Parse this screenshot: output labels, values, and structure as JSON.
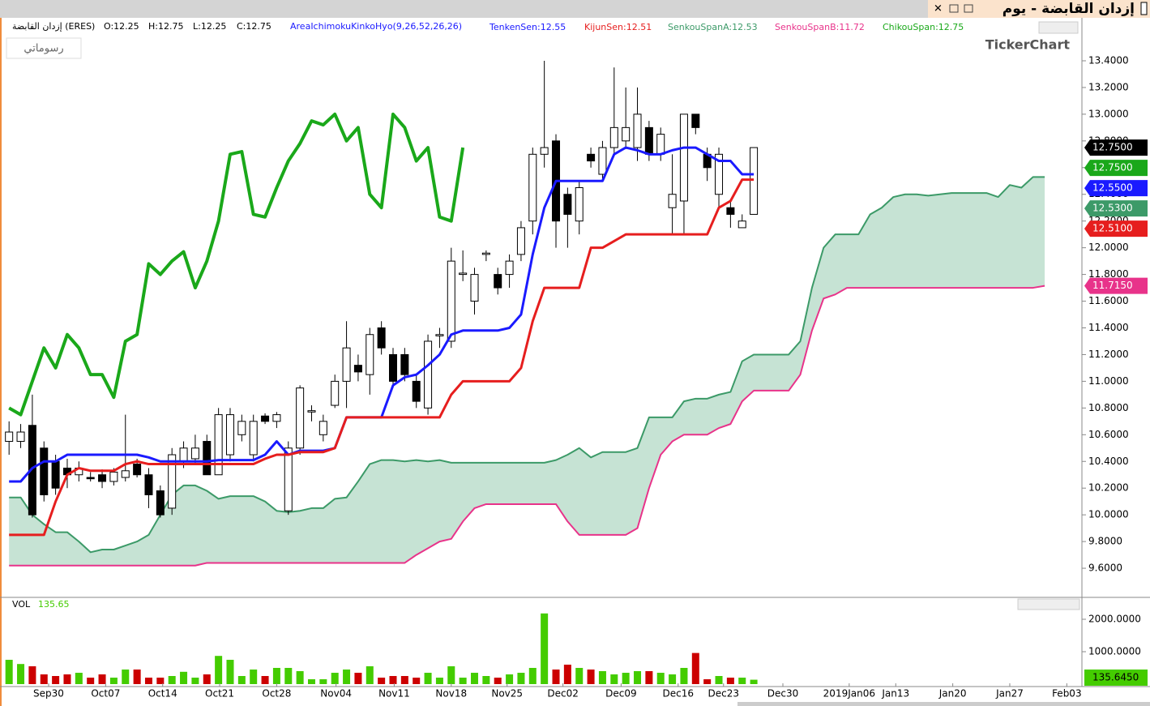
{
  "title": "إزدان القابضة - يوم",
  "drawings_button": "رسوماتي",
  "watermark": "TickerChart",
  "chart_data": [
    {
      "type": "candlestick",
      "info": [
        {
          "text": "إزدان القابضة (ERES)",
          "color": "#000000"
        },
        {
          "text": "O:12.25",
          "color": "#000000"
        },
        {
          "text": "H:12.75",
          "color": "#000000"
        },
        {
          "text": "L:12.25",
          "color": "#000000"
        },
        {
          "text": "C:12.75",
          "color": "#000000"
        },
        {
          "text": "AreaIchimokuKinkoHyo(9,26,52,26,26)",
          "color": "#1a1aff"
        }
      ],
      "xlim": [
        -0.5,
        92.2
      ],
      "ylim": [
        9.394,
        13.582
      ],
      "yticks": [
        {
          "value": 13.4,
          "label": "13.4000"
        },
        {
          "value": 13.2,
          "label": "13.2000"
        },
        {
          "value": 13.0,
          "label": "13.0000"
        },
        {
          "value": 12.8,
          "label": "12.8000"
        },
        {
          "value": 12.6,
          "label": "12.6000"
        },
        {
          "value": 12.4,
          "label": "12.4000"
        },
        {
          "value": 12.2,
          "label": "12.2000"
        },
        {
          "value": 12.0,
          "label": "12.0000"
        },
        {
          "value": 11.8,
          "label": "11.8000"
        },
        {
          "value": 11.6,
          "label": "11.6000"
        },
        {
          "value": 11.4,
          "label": "11.4000"
        },
        {
          "value": 11.2,
          "label": "11.2000"
        },
        {
          "value": 11.0,
          "label": "11.0000"
        },
        {
          "value": 10.8,
          "label": "10.8000"
        },
        {
          "value": 10.6,
          "label": "10.6000"
        },
        {
          "value": 10.4,
          "label": "10.4000"
        },
        {
          "value": 10.2,
          "label": "10.2000"
        },
        {
          "value": 10.0,
          "label": "10.0000"
        },
        {
          "value": 9.8,
          "label": "9.8000"
        },
        {
          "value": 9.6,
          "label": "9.6000"
        }
      ],
      "up_color": "#ffffff",
      "down_color": "#000000",
      "open": [
        10.55,
        10.55,
        10.67,
        10.5,
        10.4,
        10.35,
        10.3,
        10.28,
        10.3,
        10.25,
        10.28,
        10.38,
        10.3,
        10.18,
        10.05,
        10.4,
        10.42,
        10.55,
        10.3,
        10.45,
        10.6,
        10.45,
        10.74,
        10.7,
        10.03,
        10.5,
        10.77,
        10.6,
        10.82,
        11.0,
        11.12,
        11.05,
        11.4,
        11.2,
        11.2,
        11.0,
        10.8,
        11.34,
        11.3,
        11.8,
        11.6,
        11.95,
        11.8,
        11.8,
        11.95,
        12.2,
        12.7,
        12.8,
        12.4,
        12.2,
        12.7,
        12.55,
        12.75,
        12.8,
        12.75,
        12.9,
        12.7,
        12.3,
        12.35,
        13.0,
        12.7,
        12.4,
        12.3,
        12.15,
        12.25
      ],
      "high": [
        10.7,
        10.68,
        10.9,
        10.55,
        10.45,
        10.42,
        10.4,
        10.32,
        10.34,
        10.35,
        10.75,
        10.42,
        10.35,
        10.22,
        10.5,
        10.55,
        10.6,
        10.6,
        10.8,
        10.8,
        10.75,
        10.75,
        10.76,
        10.77,
        10.55,
        10.97,
        10.82,
        10.75,
        11.05,
        11.45,
        11.2,
        11.4,
        11.45,
        11.25,
        11.25,
        11.05,
        11.35,
        11.4,
        12.0,
        11.98,
        11.85,
        11.98,
        11.85,
        11.95,
        12.2,
        12.75,
        13.4,
        12.85,
        12.45,
        12.5,
        12.75,
        12.8,
        13.35,
        13.2,
        13.2,
        12.95,
        12.9,
        12.7,
        13.0,
        13.0,
        12.75,
        12.75,
        12.35,
        12.25,
        12.75
      ],
      "low": [
        10.45,
        10.5,
        9.98,
        10.1,
        10.15,
        10.2,
        10.25,
        10.25,
        10.2,
        10.22,
        10.25,
        10.28,
        10.05,
        9.98,
        10.0,
        10.35,
        10.38,
        10.3,
        10.3,
        10.4,
        10.55,
        10.4,
        10.68,
        10.65,
        10.0,
        10.45,
        10.7,
        10.55,
        10.8,
        10.8,
        11.0,
        10.9,
        11.2,
        10.95,
        11.0,
        10.8,
        10.75,
        11.25,
        11.25,
        11.75,
        11.5,
        11.9,
        11.65,
        11.7,
        11.9,
        12.1,
        12.6,
        12.0,
        12.0,
        12.1,
        12.6,
        12.5,
        12.7,
        12.75,
        12.65,
        12.65,
        12.65,
        12.1,
        12.1,
        12.85,
        12.5,
        12.3,
        12.15,
        12.15,
        12.25
      ],
      "close": [
        10.62,
        10.62,
        10.0,
        10.15,
        10.2,
        10.3,
        10.35,
        10.27,
        10.25,
        10.32,
        10.33,
        10.3,
        10.15,
        10.0,
        10.45,
        10.5,
        10.5,
        10.3,
        10.75,
        10.75,
        10.7,
        10.7,
        10.7,
        10.75,
        10.5,
        10.95,
        10.78,
        10.7,
        11.0,
        11.25,
        11.07,
        11.35,
        11.25,
        11.0,
        11.05,
        10.85,
        11.3,
        11.35,
        11.9,
        11.81,
        11.8,
        11.96,
        11.7,
        11.9,
        12.15,
        12.7,
        12.75,
        12.2,
        12.25,
        12.45,
        12.65,
        12.75,
        12.9,
        12.9,
        13.0,
        12.7,
        12.85,
        12.4,
        13.0,
        12.9,
        12.6,
        12.7,
        12.25,
        12.2,
        12.75
      ],
      "cloud": [
        2,
        3
      ],
      "cloud_color": "#c6e3d4",
      "series": [
        {
          "label": "TenkenSen:12.55",
          "color": "#1a1aff",
          "width": 3,
          "values": [
            10.25,
            10.25,
            10.35,
            10.4,
            10.4,
            10.45,
            10.45,
            10.45,
            10.45,
            10.45,
            10.45,
            10.45,
            10.43,
            10.4,
            10.4,
            10.4,
            10.4,
            10.4,
            10.41,
            10.41,
            10.41,
            10.41,
            10.45,
            10.55,
            10.45,
            10.48,
            10.48,
            10.48,
            10.5,
            10.73,
            10.73,
            10.73,
            10.73,
            10.97,
            11.03,
            11.05,
            11.12,
            11.2,
            11.35,
            11.38,
            11.38,
            11.38,
            11.38,
            11.4,
            11.5,
            11.95,
            12.3,
            12.5,
            12.5,
            12.5,
            12.5,
            12.5,
            12.7,
            12.75,
            12.73,
            12.7,
            12.7,
            12.73,
            12.75,
            12.75,
            12.7,
            12.65,
            12.65,
            12.55,
            12.55
          ]
        },
        {
          "label": "KijunSen:12.51",
          "color": "#e61e1e",
          "width": 3,
          "values": [
            9.85,
            9.85,
            9.85,
            9.85,
            10.1,
            10.3,
            10.35,
            10.33,
            10.33,
            10.33,
            10.38,
            10.4,
            10.38,
            10.38,
            10.38,
            10.38,
            10.38,
            10.38,
            10.38,
            10.38,
            10.38,
            10.38,
            10.42,
            10.45,
            10.45,
            10.47,
            10.47,
            10.47,
            10.5,
            10.73,
            10.73,
            10.73,
            10.73,
            10.73,
            10.73,
            10.73,
            10.73,
            10.73,
            10.9,
            11.0,
            11.0,
            11.0,
            11.0,
            11.0,
            11.1,
            11.45,
            11.7,
            11.7,
            11.7,
            11.7,
            12.0,
            12.0,
            12.05,
            12.1,
            12.1,
            12.1,
            12.1,
            12.1,
            12.1,
            12.1,
            12.1,
            12.3,
            12.35,
            12.51,
            12.51
          ]
        },
        {
          "label": "SenkouSpanA:12.53",
          "color": "#3c9a68",
          "width": 2,
          "values": [
            10.13,
            10.13,
            10.0,
            9.93,
            9.87,
            9.87,
            9.8,
            9.72,
            9.74,
            9.74,
            9.77,
            9.8,
            9.85,
            10.0,
            10.15,
            10.22,
            10.22,
            10.18,
            10.12,
            10.14,
            10.14,
            10.14,
            10.1,
            10.03,
            10.02,
            10.03,
            10.05,
            10.05,
            10.12,
            10.13,
            10.25,
            10.38,
            10.41,
            10.41,
            10.4,
            10.41,
            10.4,
            10.41,
            10.39,
            10.39,
            10.39,
            10.39,
            10.39,
            10.39,
            10.39,
            10.39,
            10.39,
            10.41,
            10.45,
            10.5,
            10.43,
            10.47,
            10.47,
            10.47,
            10.5,
            10.73,
            10.73,
            10.73,
            10.85,
            10.87,
            10.87,
            10.9,
            10.92,
            11.15,
            11.2,
            11.2,
            11.2,
            11.2,
            11.3,
            11.7,
            12.0,
            12.1,
            12.1,
            12.1,
            12.25,
            12.3,
            12.38,
            12.4,
            12.4,
            12.39,
            12.4,
            12.41,
            12.41,
            12.41,
            12.41,
            12.38,
            12.47,
            12.45,
            12.53,
            12.53
          ]
        },
        {
          "label": "SenkouSpanB:11.72",
          "color": "#e8338a",
          "width": 2,
          "values": [
            9.62,
            9.62,
            9.62,
            9.62,
            9.62,
            9.62,
            9.62,
            9.62,
            9.62,
            9.62,
            9.62,
            9.62,
            9.62,
            9.62,
            9.62,
            9.62,
            9.62,
            9.64,
            9.64,
            9.64,
            9.64,
            9.64,
            9.64,
            9.64,
            9.64,
            9.64,
            9.64,
            9.64,
            9.64,
            9.64,
            9.64,
            9.64,
            9.64,
            9.64,
            9.64,
            9.7,
            9.75,
            9.8,
            9.82,
            9.95,
            10.05,
            10.08,
            10.08,
            10.08,
            10.08,
            10.08,
            10.08,
            10.08,
            9.95,
            9.85,
            9.85,
            9.85,
            9.85,
            9.85,
            9.9,
            10.2,
            10.45,
            10.55,
            10.6,
            10.6,
            10.6,
            10.65,
            10.68,
            10.85,
            10.93,
            10.93,
            10.93,
            10.93,
            11.05,
            11.38,
            11.62,
            11.65,
            11.7,
            11.7,
            11.7,
            11.7,
            11.7,
            11.7,
            11.7,
            11.7,
            11.7,
            11.7,
            11.7,
            11.7,
            11.7,
            11.7,
            11.7,
            11.7,
            11.7,
            11.715
          ]
        },
        {
          "label": "ChikouSpan:12.75",
          "color": "#1aa81a",
          "width": 4,
          "values": [
            10.8,
            10.75,
            11.0,
            11.25,
            11.1,
            11.35,
            11.25,
            11.05,
            11.05,
            10.88,
            11.3,
            11.35,
            11.88,
            11.8,
            11.9,
            11.97,
            11.7,
            11.9,
            12.2,
            12.7,
            12.72,
            12.25,
            12.23,
            12.45,
            12.65,
            12.78,
            12.95,
            12.92,
            13.0,
            12.8,
            12.9,
            12.4,
            12.3,
            13.0,
            12.9,
            12.65,
            12.75,
            12.23,
            12.2,
            12.75
          ]
        }
      ],
      "badges": [
        {
          "value": 12.75,
          "label": "12.7500",
          "color": "#000000"
        },
        {
          "value": 12.75,
          "label": "12.7500",
          "color": "#1aa81a"
        },
        {
          "value": 12.55,
          "label": "12.5500",
          "color": "#1a1aff"
        },
        {
          "value": 12.53,
          "label": "12.5300",
          "color": "#3c9a68"
        },
        {
          "value": 12.51,
          "label": "12.5100",
          "color": "#e61e1e"
        },
        {
          "value": 11.715,
          "label": "11.7150",
          "color": "#e8338a"
        }
      ]
    },
    {
      "type": "bar",
      "label": "VOL",
      "value_label": "135.65",
      "xlim": [
        -0.5,
        92.2
      ],
      "ylim": [
        -50,
        2650
      ],
      "yticks": [
        {
          "value": 2000,
          "label": "2000.0000"
        },
        {
          "value": 1000,
          "label": "1000.0000"
        }
      ],
      "xticks": [
        {
          "value": 3.4,
          "label": "Sep30"
        },
        {
          "value": 8.3,
          "label": "Oct07"
        },
        {
          "value": 13.2,
          "label": "Oct14"
        },
        {
          "value": 18.1,
          "label": "Oct21"
        },
        {
          "value": 23.0,
          "label": "Oct28"
        },
        {
          "value": 28.1,
          "label": "Nov04"
        },
        {
          "value": 33.1,
          "label": "Nov11"
        },
        {
          "value": 38.0,
          "label": "Nov18"
        },
        {
          "value": 42.8,
          "label": "Nov25"
        },
        {
          "value": 47.6,
          "label": "Dec02"
        },
        {
          "value": 52.6,
          "label": "Dec09"
        },
        {
          "value": 57.5,
          "label": "Dec16"
        },
        {
          "value": 61.4,
          "label": "Dec23"
        },
        {
          "value": 66.5,
          "label": "Dec30"
        },
        {
          "value": 72.2,
          "label": "2019Jan06"
        },
        {
          "value": 76.2,
          "label": "Jan13"
        },
        {
          "value": 81.1,
          "label": "Jan20"
        },
        {
          "value": 86.0,
          "label": "Jan27"
        },
        {
          "value": 90.9,
          "label": "Feb03"
        }
      ],
      "up_color": "#44cc00",
      "down_color": "#cc0000",
      "values": [
        750,
        620,
        550,
        300,
        250,
        300,
        350,
        200,
        300,
        200,
        450,
        450,
        200,
        200,
        250,
        380,
        200,
        300,
        870,
        750,
        250,
        450,
        250,
        500,
        500,
        400,
        150,
        150,
        350,
        450,
        350,
        550,
        200,
        250,
        250,
        200,
        350,
        200,
        550,
        200,
        350,
        250,
        200,
        300,
        350,
        500,
        2180,
        450,
        600,
        500,
        450,
        400,
        300,
        350,
        400,
        400,
        350,
        300,
        500,
        960,
        150,
        250,
        200,
        200,
        135.65
      ],
      "badge": {
        "value": 135.645,
        "label": "135.6450",
        "color": "#44cc00"
      }
    }
  ]
}
